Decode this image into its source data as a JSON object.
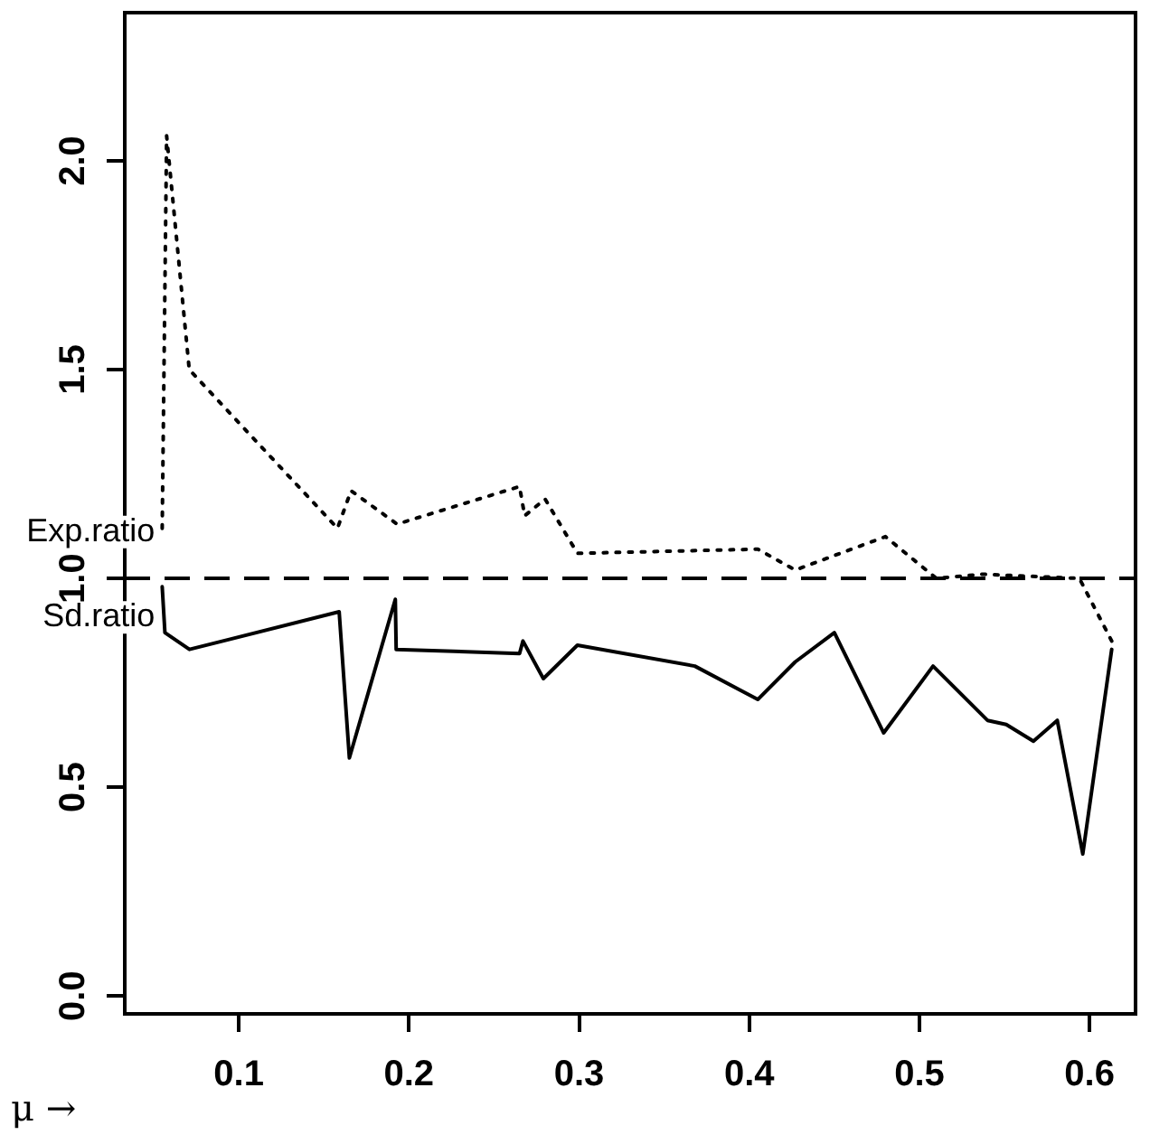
{
  "chart_data": {
    "type": "line",
    "xlabel": "μ →",
    "xlim": [
      0.033,
      0.627
    ],
    "ylim": [
      -0.043,
      2.355
    ],
    "xticks": [
      0.1,
      0.2,
      0.3,
      0.4,
      0.5,
      0.6
    ],
    "yticks": [
      {
        "value": 0,
        "label": "0.0"
      },
      0.5,
      {
        "value": 1,
        "label": "1.0"
      },
      1.5,
      {
        "value": 2,
        "label": "2.0"
      }
    ],
    "grid": false,
    "legend": false,
    "marker": "none",
    "series": [
      {
        "name": "Exp.ratio",
        "color": "#000000",
        "line_style": "dotted",
        "x": [
          0.055,
          0.0576,
          0.0709,
          0.158,
          0.166,
          0.193,
          0.265,
          0.268,
          0.28,
          0.299,
          0.405,
          0.427,
          0.48,
          0.51,
          0.537,
          0.594,
          0.613
        ],
        "values": [
          1.12,
          2.06,
          1.5,
          1.12,
          1.21,
          1.13,
          1.22,
          1.15,
          1.19,
          1.06,
          1.07,
          1.02,
          1.1,
          1.0,
          1.01,
          1.0,
          0.85
        ]
      },
      {
        "name": "Sd.ratio",
        "color": "#000000",
        "line_style": "solid",
        "x": [
          0.055,
          0.0566,
          0.071,
          0.159,
          0.165,
          0.192,
          0.1925,
          0.265,
          0.267,
          0.279,
          0.299,
          0.368,
          0.405,
          0.427,
          0.45,
          0.479,
          0.508,
          0.54,
          0.551,
          0.567,
          0.581,
          0.596,
          0.613
        ],
        "values": [
          0.98,
          0.87,
          0.83,
          0.92,
          0.57,
          0.95,
          0.83,
          0.82,
          0.85,
          0.76,
          0.84,
          0.79,
          0.71,
          0.8,
          0.87,
          0.63,
          0.79,
          0.66,
          0.65,
          0.61,
          0.66,
          0.34,
          0.83
        ]
      }
    ],
    "ref_lines": [
      {
        "axis": "y",
        "value": 1,
        "line_style": "dashed",
        "color": "#000000"
      }
    ]
  }
}
